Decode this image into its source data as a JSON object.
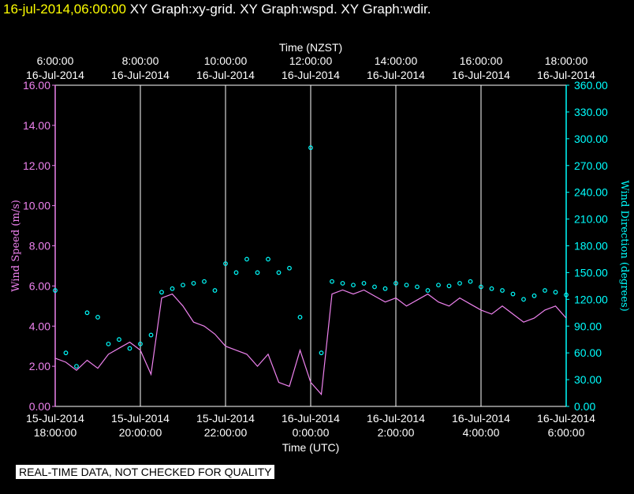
{
  "header": {
    "timestamp": "16-jul-2014,06:00:00",
    "graphs": "XY Graph:xy-grid.  XY Graph:wspd.  XY Graph:wdir."
  },
  "banner": "REAL-TIME DATA, NOT CHECKED FOR QUALITY",
  "colors": {
    "speed": "#ee82ee",
    "direction": "#00ffff",
    "grid": "#ffffff",
    "background": "#000000",
    "stamp": "#ffff00"
  },
  "chart_data": {
    "type": "line+scatter",
    "top_axis": {
      "label": "Time (NZST)",
      "ticks": [
        {
          "time": "6:00:00",
          "date": "16-Jul-2014"
        },
        {
          "time": "8:00:00",
          "date": "16-Jul-2014"
        },
        {
          "time": "10:00:00",
          "date": "16-Jul-2014"
        },
        {
          "time": "12:00:00",
          "date": "16-Jul-2014"
        },
        {
          "time": "14:00:00",
          "date": "16-Jul-2014"
        },
        {
          "time": "16:00:00",
          "date": "16-Jul-2014"
        },
        {
          "time": "18:00:00",
          "date": "16-Jul-2014"
        }
      ]
    },
    "bottom_axis": {
      "label": "Time (UTC)",
      "ticks": [
        {
          "date": "15-Jul-2014",
          "time": "18:00:00"
        },
        {
          "date": "15-Jul-2014",
          "time": "20:00:00"
        },
        {
          "date": "15-Jul-2014",
          "time": "22:00:00"
        },
        {
          "date": "16-Jul-2014",
          "time": "0:00:00"
        },
        {
          "date": "16-Jul-2014",
          "time": "2:00:00"
        },
        {
          "date": "16-Jul-2014",
          "time": "4:00:00"
        },
        {
          "date": "16-Jul-2014",
          "time": "6:00:00"
        }
      ],
      "range_hours": [
        0,
        12
      ]
    },
    "left_axis": {
      "label": "Wind Speed (m/s)",
      "ylim": [
        0,
        16
      ],
      "ticks": [
        "0.00",
        "2.00",
        "4.00",
        "6.00",
        "8.00",
        "10.00",
        "12.00",
        "14.00",
        "16.00"
      ]
    },
    "right_axis": {
      "label": "Wind Direction (degrees)",
      "ylim": [
        0,
        360
      ],
      "ticks": [
        "0.00",
        "30.00",
        "60.00",
        "90.00",
        "120.00",
        "150.00",
        "180.00",
        "210.00",
        "240.00",
        "270.00",
        "300.00",
        "330.00",
        "360.00"
      ]
    },
    "series": [
      {
        "name": "wspd",
        "style": "line",
        "axis": "left",
        "t_hours": [
          0,
          0.25,
          0.5,
          0.75,
          1,
          1.25,
          1.5,
          1.75,
          2,
          2.25,
          2.5,
          2.75,
          3,
          3.25,
          3.5,
          3.75,
          4,
          4.25,
          4.5,
          4.75,
          5,
          5.25,
          5.5,
          5.75,
          6,
          6.25,
          6.5,
          6.75,
          7,
          7.25,
          7.5,
          7.75,
          8,
          8.25,
          8.5,
          8.75,
          9,
          9.25,
          9.5,
          9.75,
          10,
          10.25,
          10.5,
          10.75,
          11,
          11.25,
          11.5,
          11.75,
          12
        ],
        "values": [
          2.4,
          2.2,
          1.8,
          2.3,
          1.9,
          2.6,
          2.9,
          3.2,
          2.8,
          1.6,
          5.4,
          5.6,
          5.0,
          4.2,
          4.0,
          3.6,
          3.0,
          2.8,
          2.6,
          2.0,
          2.6,
          1.2,
          1.0,
          2.8,
          1.2,
          0.6,
          5.6,
          5.8,
          5.6,
          5.8,
          5.5,
          5.2,
          5.4,
          5.0,
          5.3,
          5.6,
          5.2,
          5.0,
          5.4,
          5.1,
          4.8,
          4.6,
          5.0,
          4.6,
          4.2,
          4.4,
          4.8,
          5.0,
          4.4
        ]
      },
      {
        "name": "wdir",
        "style": "scatter",
        "axis": "right",
        "t_hours": [
          0,
          0.25,
          0.5,
          0.75,
          1,
          1.25,
          1.5,
          1.75,
          2,
          2.25,
          2.5,
          2.75,
          3,
          3.25,
          3.5,
          3.75,
          4,
          4.25,
          4.5,
          4.75,
          5,
          5.25,
          5.5,
          5.75,
          6,
          6.25,
          6.5,
          6.75,
          7,
          7.25,
          7.5,
          7.75,
          8,
          8.25,
          8.5,
          8.75,
          9,
          9.25,
          9.5,
          9.75,
          10,
          10.25,
          10.5,
          10.75,
          11,
          11.25,
          11.5,
          11.75,
          12
        ],
        "values": [
          130,
          60,
          45,
          105,
          100,
          70,
          75,
          65,
          70,
          80,
          128,
          132,
          136,
          138,
          140,
          130,
          160,
          150,
          165,
          150,
          165,
          150,
          155,
          100,
          290,
          60,
          140,
          138,
          136,
          138,
          134,
          132,
          138,
          136,
          134,
          130,
          136,
          135,
          138,
          140,
          134,
          132,
          130,
          126,
          120,
          124,
          130,
          128,
          125
        ]
      }
    ]
  }
}
